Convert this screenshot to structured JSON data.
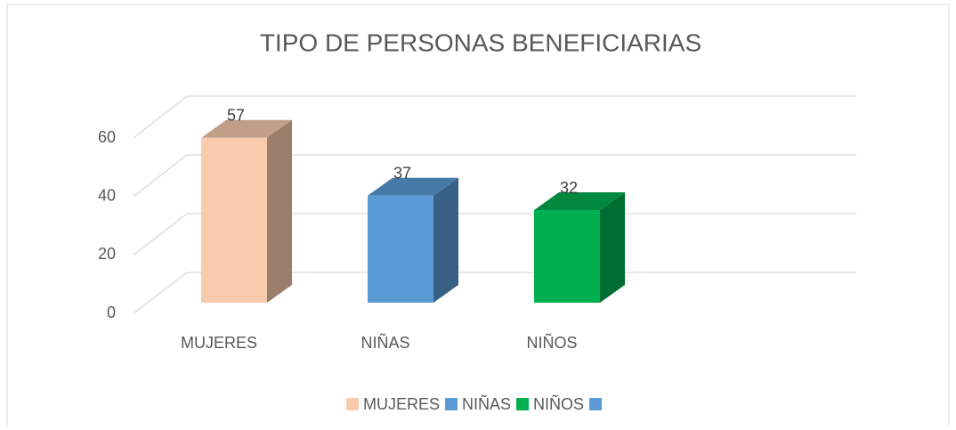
{
  "chart_data": {
    "type": "bar3d",
    "title": "TIPO DE PERSONAS BENEFICIARIAS",
    "categories": [
      "MUJERES",
      "NIÑAS",
      "NIÑOS",
      null
    ],
    "values": [
      57,
      37,
      32,
      null
    ],
    "colors": [
      "#f8cbad",
      "#5b9bd5",
      "#00b050",
      "#5b9bd5"
    ],
    "ylim": [
      0,
      60
    ],
    "yticks": [
      0,
      20,
      40,
      60
    ],
    "grid": true,
    "legend": "bottom"
  }
}
